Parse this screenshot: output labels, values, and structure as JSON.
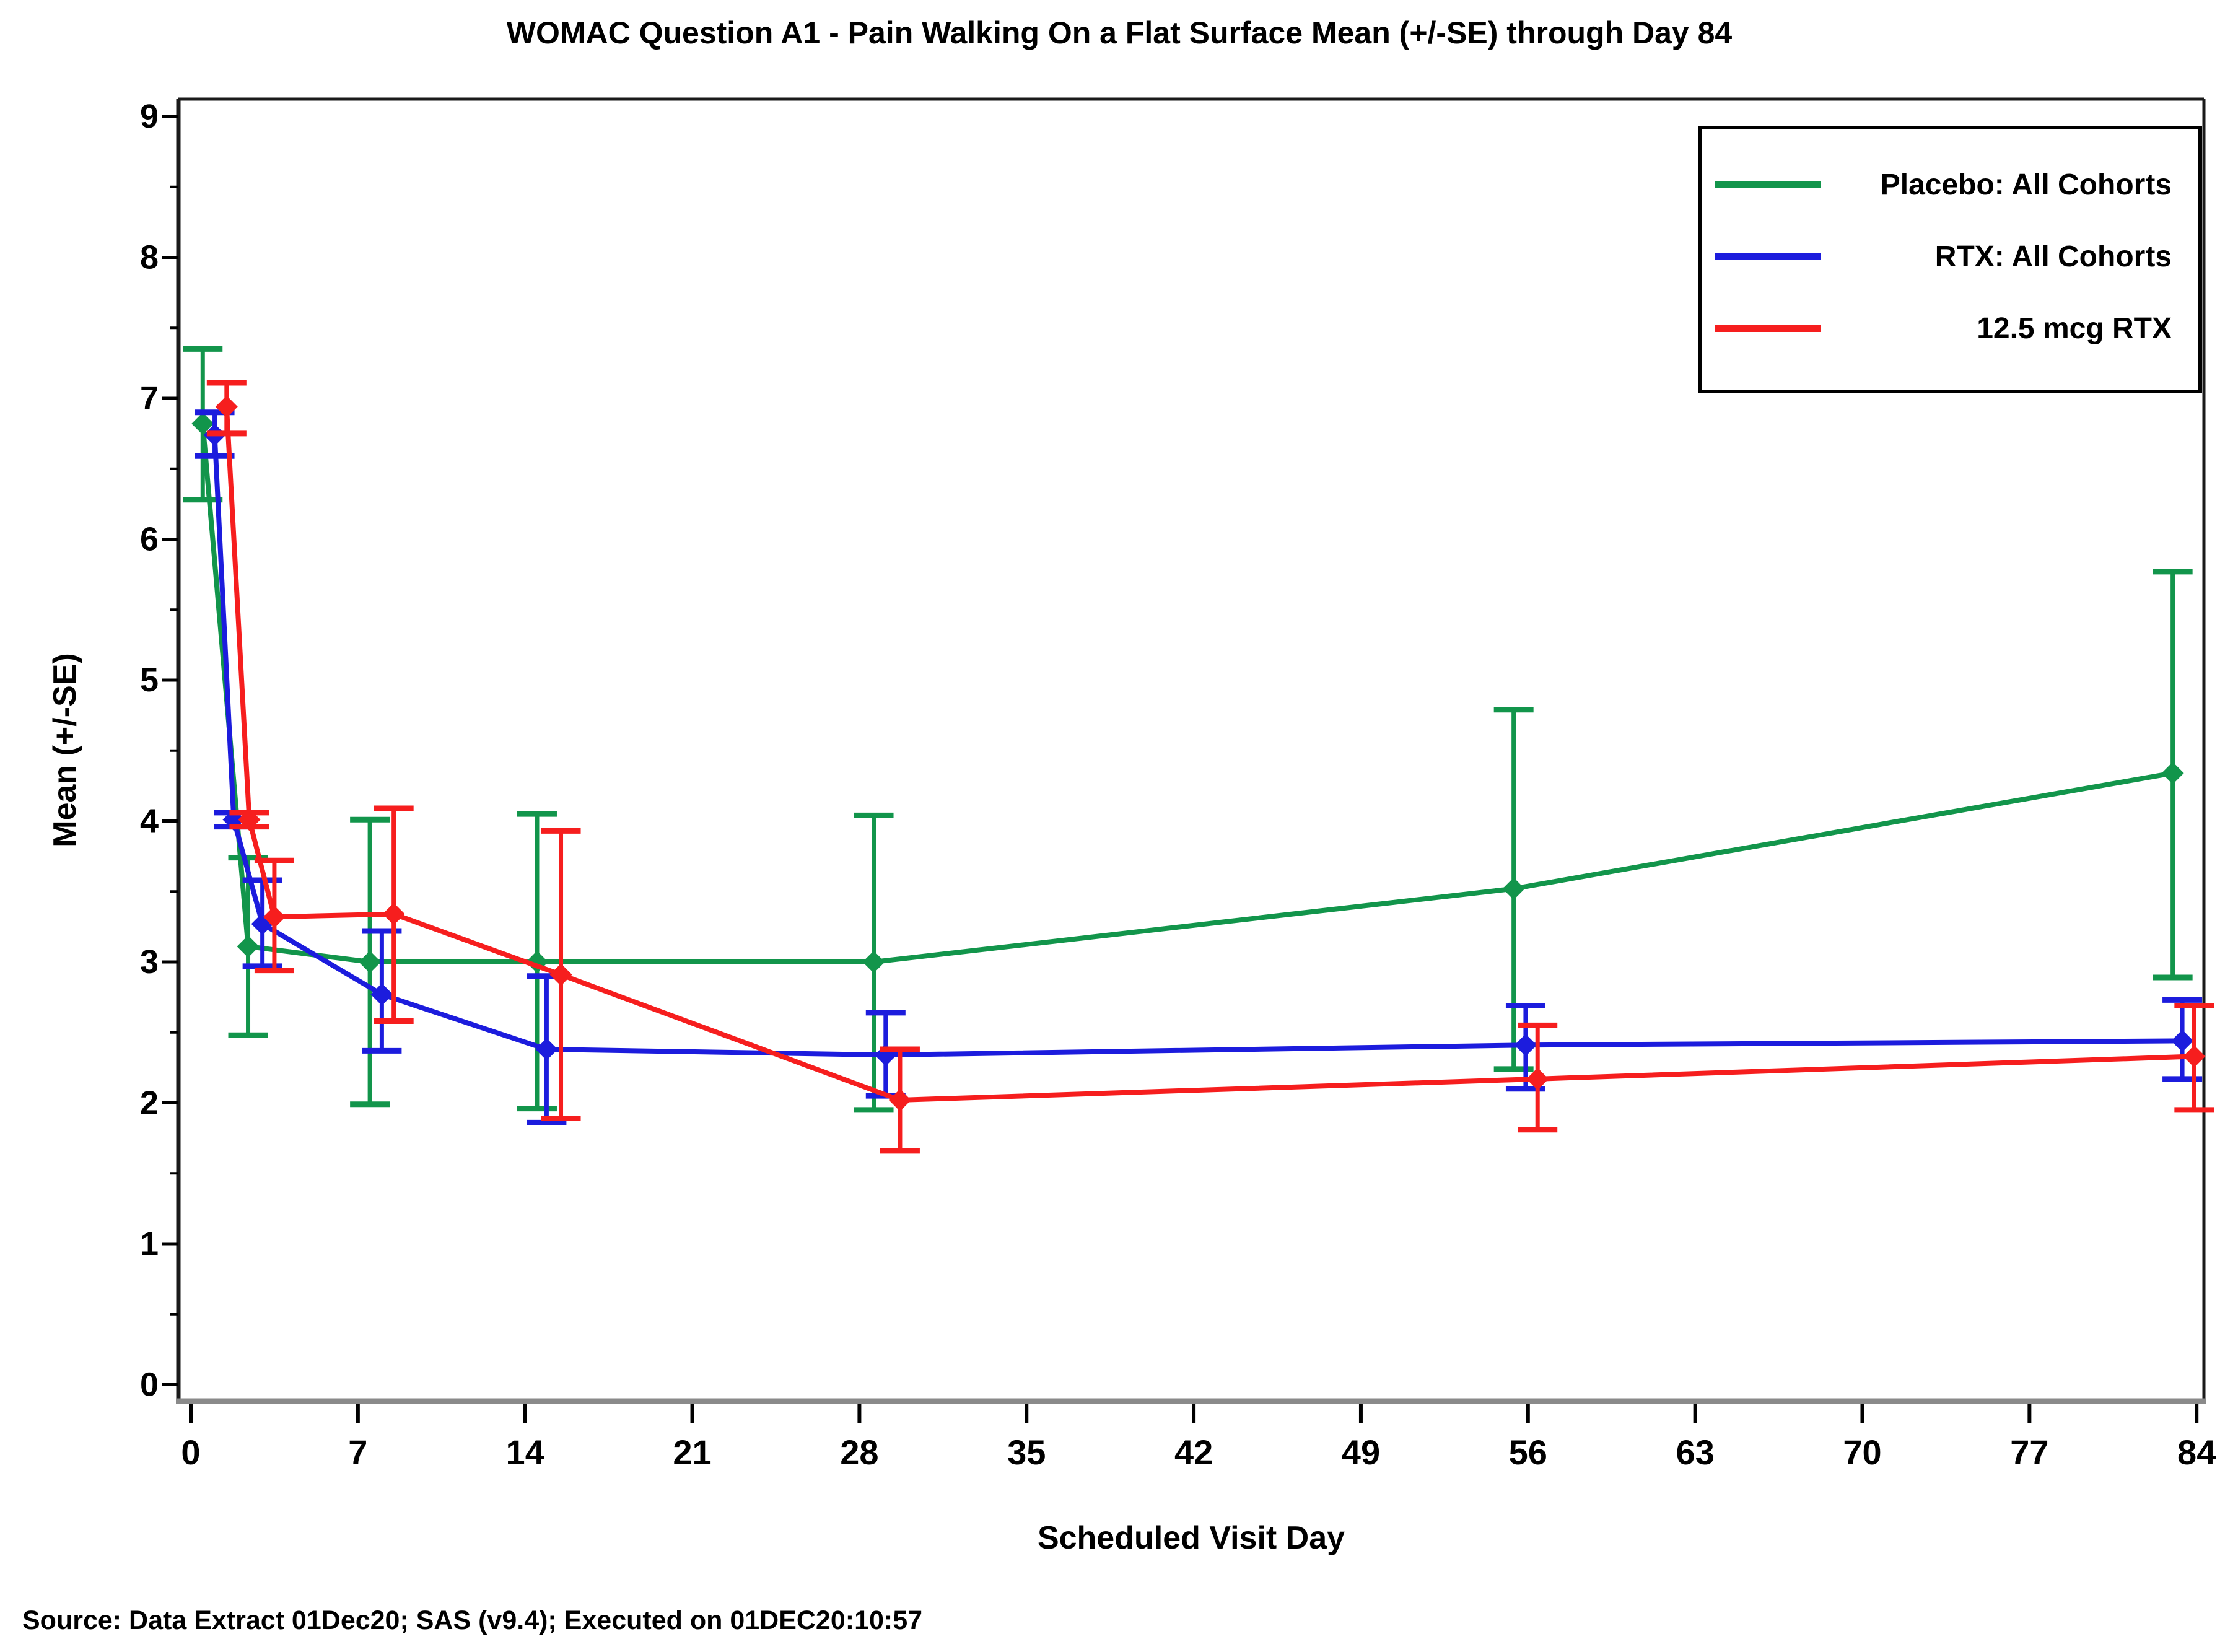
{
  "page": {
    "title": "WOMAC Question A1 - Pain Walking On a Flat Surface Mean (+/-SE) through Day 84",
    "source_note": "Source: Data Extract 01Dec20; SAS (v9.4); Executed on 01DEC20:10:57"
  },
  "chart_data": {
    "type": "line",
    "title": "WOMAC Question A1 - Pain Walking On a Flat Surface Mean (+/-SE) through Day 84",
    "xlabel": "Scheduled Visit Day",
    "ylabel": "Mean (+/-SE)",
    "xlim": [
      -0.55,
      84.6
    ],
    "ylim": [
      -0.12,
      9.12
    ],
    "x_ticks": [
      0,
      7,
      14,
      21,
      28,
      35,
      42,
      49,
      56,
      63,
      70,
      77,
      84
    ],
    "y_ticks": [
      0,
      1,
      2,
      3,
      4,
      5,
      6,
      7,
      8,
      9
    ],
    "y_minor_tick_step": 0.5,
    "grid": false,
    "marker": "diamond",
    "error_bars": "mean +/- SE with caps",
    "legend_position": "top-right-inside",
    "frame_color": "#1a1a1a",
    "baseline_color": "#8a8a8a",
    "series": [
      {
        "name": "Placebo: All Cohorts",
        "color": "#12954b",
        "points": [
          {
            "x": 0.5,
            "y": 6.82,
            "lo": 6.28,
            "hi": 7.35
          },
          {
            "x": 2.4,
            "y": 3.11,
            "lo": 2.48,
            "hi": 3.74
          },
          {
            "x": 7.5,
            "y": 3.0,
            "lo": 1.99,
            "hi": 4.01
          },
          {
            "x": 14.5,
            "y": 3.0,
            "lo": 1.96,
            "hi": 4.05
          },
          {
            "x": 28.6,
            "y": 3.0,
            "lo": 1.95,
            "hi": 4.04
          },
          {
            "x": 55.4,
            "y": 3.52,
            "lo": 2.24,
            "hi": 4.79
          },
          {
            "x": 83.0,
            "y": 4.34,
            "lo": 2.89,
            "hi": 5.77
          }
        ]
      },
      {
        "name": "RTX: All Cohorts",
        "color": "#1c1cdd",
        "points": [
          {
            "x": 1.0,
            "y": 6.74,
            "lo": 6.59,
            "hi": 6.9
          },
          {
            "x": 1.8,
            "y": 4.01,
            "lo": 3.96,
            "hi": 4.06
          },
          {
            "x": 3.0,
            "y": 3.27,
            "lo": 2.97,
            "hi": 3.58
          },
          {
            "x": 8.0,
            "y": 2.77,
            "lo": 2.37,
            "hi": 3.22
          },
          {
            "x": 14.9,
            "y": 2.38,
            "lo": 1.86,
            "hi": 2.9
          },
          {
            "x": 29.1,
            "y": 2.34,
            "lo": 2.05,
            "hi": 2.64
          },
          {
            "x": 55.9,
            "y": 2.41,
            "lo": 2.1,
            "hi": 2.69
          },
          {
            "x": 83.4,
            "y": 2.44,
            "lo": 2.17,
            "hi": 2.73
          }
        ]
      },
      {
        "name": "12.5 mcg RTX",
        "color": "#f61e1e",
        "points": [
          {
            "x": 1.5,
            "y": 6.94,
            "lo": 6.75,
            "hi": 7.11
          },
          {
            "x": 2.45,
            "y": 4.01,
            "lo": 3.96,
            "hi": 4.06
          },
          {
            "x": 3.5,
            "y": 3.32,
            "lo": 2.94,
            "hi": 3.72
          },
          {
            "x": 8.5,
            "y": 3.34,
            "lo": 2.58,
            "hi": 4.09
          },
          {
            "x": 15.5,
            "y": 2.91,
            "lo": 1.89,
            "hi": 3.93
          },
          {
            "x": 29.7,
            "y": 2.02,
            "lo": 1.66,
            "hi": 2.38
          },
          {
            "x": 56.4,
            "y": 2.17,
            "lo": 1.81,
            "hi": 2.55
          },
          {
            "x": 83.9,
            "y": 2.33,
            "lo": 1.95,
            "hi": 2.69
          }
        ]
      }
    ]
  }
}
